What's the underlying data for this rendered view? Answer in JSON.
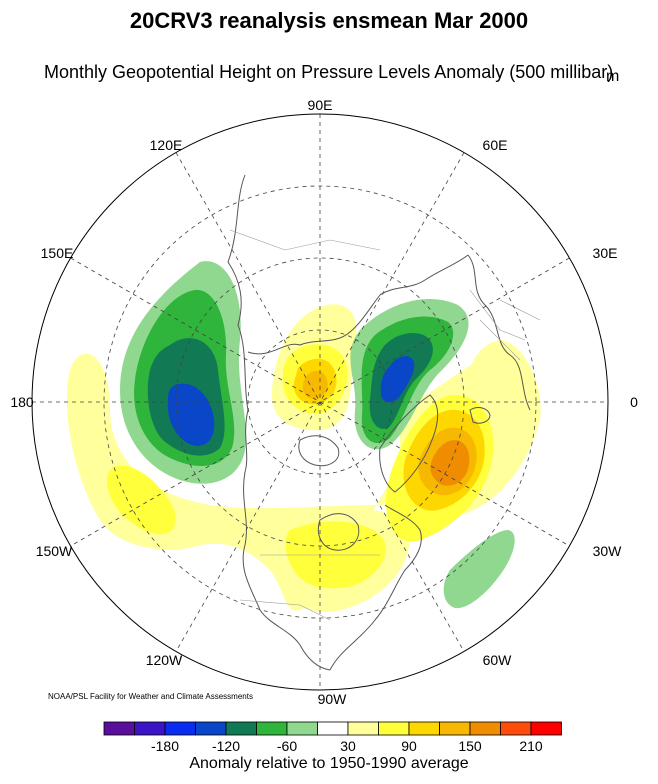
{
  "title": "20CRV3 reanalysis ensmean Mar 2000",
  "subtitle": "Monthly Geopotential Height on Pressure Levels Anomaly (500 millibar)",
  "unit": "m",
  "credit": "NOAA/PSL Facility for Weather and Climate Assessments",
  "longitude_labels": {
    "lon_90E": "90E",
    "lon_60E": "60E",
    "lon_120E": "120E",
    "lon_150E": "150E",
    "lon_30E": "30E",
    "lon_180": "180",
    "lon_0": "0",
    "lon_150W": "150W",
    "lon_30W": "30W",
    "lon_120W": "120W",
    "lon_60W": "60W",
    "lon_90W": "90W"
  },
  "colorbar": {
    "label": "Anomaly relative to 1950-1990 average",
    "colors": [
      "#5a0f9c",
      "#3b14c8",
      "#0a2cf0",
      "#0a46c8",
      "#117a54",
      "#2fb43c",
      "#90d890",
      "#ffffff",
      "#ffff9c",
      "#ffff3c",
      "#ffd700",
      "#f6b800",
      "#f08c00",
      "#ff4c0a",
      "#ff0000"
    ],
    "tick_labels": [
      "-180",
      "-120",
      "-60",
      "30",
      "90",
      "150",
      "210"
    ]
  },
  "anomaly_colors": {
    "neg_180": "#0a2cf0",
    "neg_120": "#0a46c8",
    "neg_90": "#117a54",
    "neg_60": "#2fb43c",
    "neg_30": "#90d890",
    "pos_30": "#ffff9c",
    "pos_60": "#ffff3c",
    "pos_90": "#ffd700",
    "pos_120": "#f6b800",
    "pos_150": "#f08c00"
  }
}
